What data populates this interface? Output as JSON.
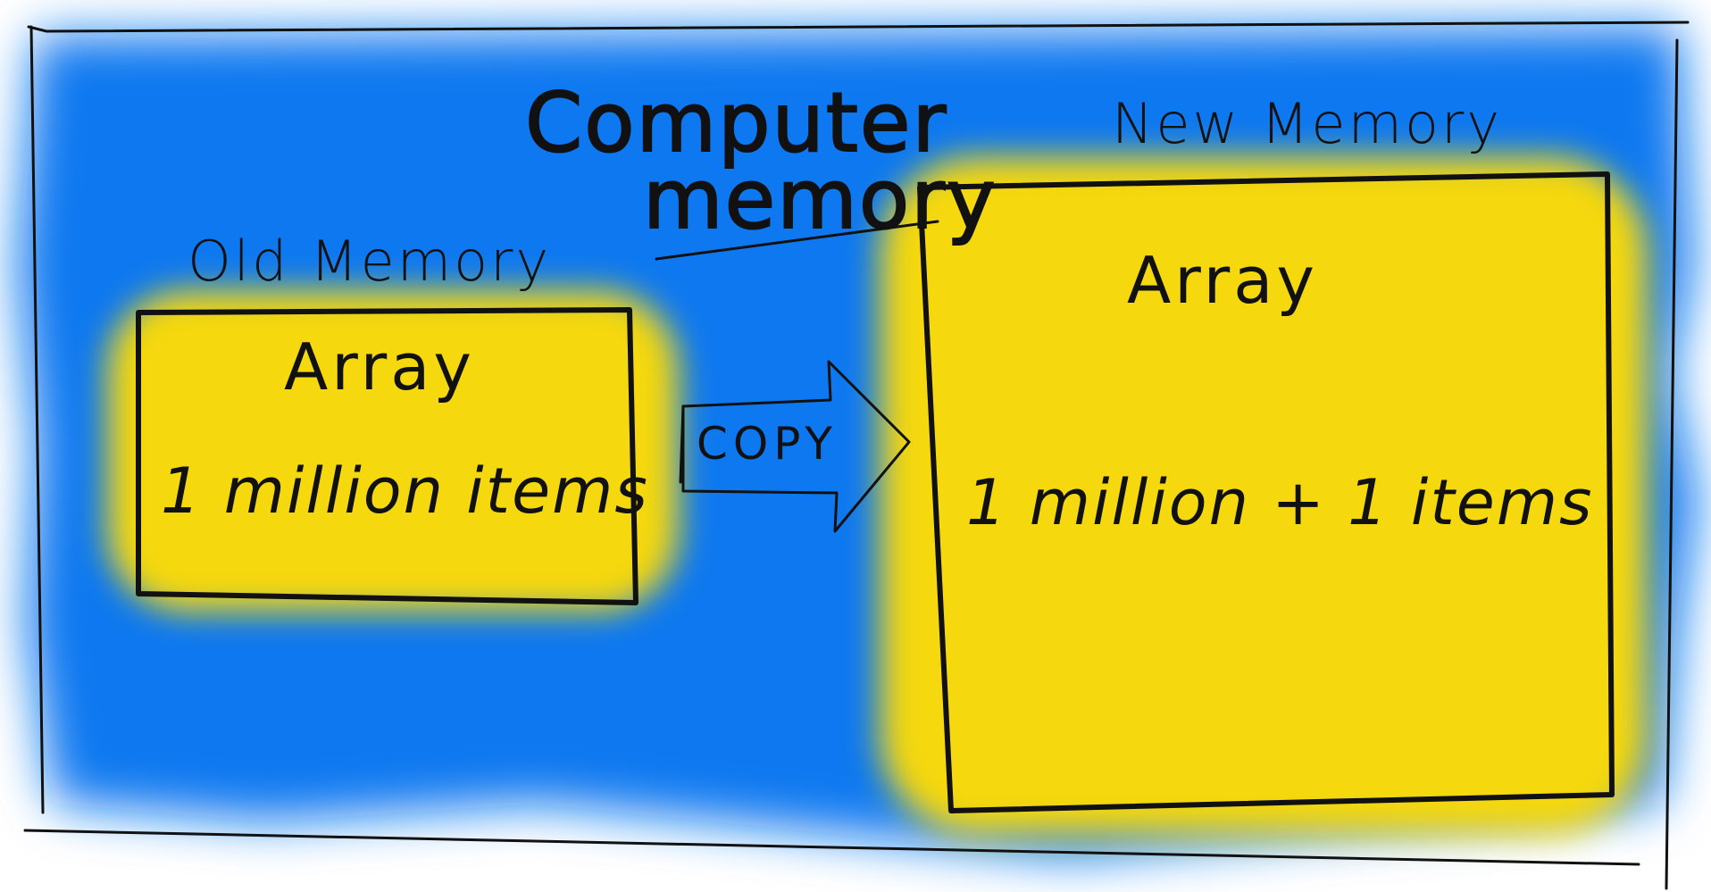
{
  "diagram": {
    "title_line1": "Computer",
    "title_line2": "memory",
    "old_memory": {
      "heading": "Old Memory",
      "box_title": "Array",
      "box_count": "1 million items"
    },
    "copy_arrow": {
      "label": "COPY"
    },
    "new_memory": {
      "heading": "New Memory",
      "box_title": "Array",
      "box_count": "1 million + 1 items"
    },
    "colors": {
      "background_blue": "#0a78f0",
      "box_yellow": "#f5d80a",
      "ink": "#111111",
      "paper": "#ffffff"
    }
  }
}
